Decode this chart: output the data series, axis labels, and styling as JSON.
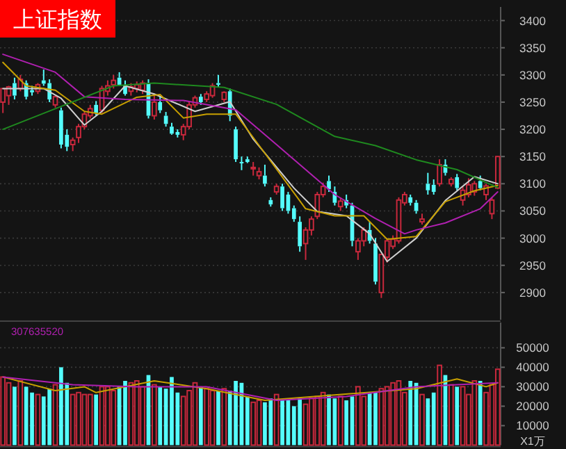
{
  "chart_data": [
    {
      "type": "candlestick",
      "title": "上证指数",
      "grid": "y",
      "ylim": [
        2850,
        3425
      ],
      "yticks": [
        2900,
        2950,
        3000,
        3050,
        3100,
        3150,
        3200,
        3250,
        3300,
        3350,
        3400
      ],
      "categories": [
        null,
        null,
        null,
        null,
        null,
        null,
        null,
        null,
        null,
        null,
        null,
        null,
        null,
        null,
        null,
        null,
        null,
        null,
        null,
        null,
        null,
        null,
        null,
        null,
        null,
        null,
        null,
        null,
        null,
        null,
        null,
        null,
        null,
        null,
        null,
        null,
        null,
        null,
        null,
        null,
        null,
        null,
        null,
        null,
        null,
        null,
        null,
        null,
        null,
        null,
        null,
        null,
        null,
        null,
        null,
        null,
        null,
        null,
        null,
        null,
        null,
        null,
        null,
        null,
        null,
        null,
        null,
        null,
        null,
        null,
        null,
        null,
        null,
        null,
        null,
        null,
        null,
        null,
        null,
        null,
        null,
        null,
        null,
        null,
        null,
        null
      ],
      "ohlc": [
        [
          3250,
          3275,
          3230,
          3275
        ],
        [
          3262,
          3280,
          3245,
          3278
        ],
        [
          3285,
          3295,
          3255,
          3262
        ],
        [
          3275,
          3300,
          3270,
          3292
        ],
        [
          3285,
          3290,
          3255,
          3260
        ],
        [
          3272,
          3280,
          3262,
          3268
        ],
        [
          3270,
          3285,
          3265,
          3282
        ],
        [
          3290,
          3310,
          3280,
          3284
        ],
        [
          3285,
          3292,
          3250,
          3255
        ],
        [
          3245,
          3262,
          3240,
          3260
        ],
        [
          3235,
          3240,
          3165,
          3172
        ],
        [
          3190,
          3200,
          3160,
          3168
        ],
        [
          3172,
          3185,
          3160,
          3180
        ],
        [
          3185,
          3210,
          3175,
          3205
        ],
        [
          3205,
          3232,
          3200,
          3228
        ],
        [
          3225,
          3245,
          3220,
          3238
        ],
        [
          3245,
          3252,
          3225,
          3230
        ],
        [
          3235,
          3280,
          3230,
          3275
        ],
        [
          3270,
          3290,
          3262,
          3280
        ],
        [
          3282,
          3300,
          3275,
          3290
        ],
        [
          3295,
          3305,
          3280,
          3282
        ],
        [
          3282,
          3290,
          3262,
          3265
        ],
        [
          3270,
          3285,
          3262,
          3278
        ],
        [
          3275,
          3288,
          3268,
          3282
        ],
        [
          3272,
          3290,
          3265,
          3285
        ],
        [
          3285,
          3292,
          3220,
          3225
        ],
        [
          3225,
          3262,
          3218,
          3250
        ],
        [
          3250,
          3260,
          3230,
          3235
        ],
        [
          3225,
          3232,
          3205,
          3210
        ],
        [
          3205,
          3212,
          3190,
          3192
        ],
        [
          3195,
          3200,
          3185,
          3190
        ],
        [
          3190,
          3210,
          3180,
          3205
        ],
        [
          3205,
          3250,
          3200,
          3245
        ],
        [
          3245,
          3262,
          3240,
          3258
        ],
        [
          3260,
          3265,
          3245,
          3250
        ],
        [
          3255,
          3270,
          3250,
          3265
        ],
        [
          3262,
          3285,
          3258,
          3280
        ],
        [
          3285,
          3300,
          3278,
          3282
        ],
        [
          3255,
          3270,
          3250,
          3268
        ],
        [
          3270,
          3275,
          3215,
          3225
        ],
        [
          3200,
          3205,
          3140,
          3145
        ],
        [
          3140,
          3150,
          3125,
          3138
        ],
        [
          3145,
          3150,
          3138,
          3140
        ],
        [
          3128,
          3140,
          3115,
          3130
        ],
        [
          3115,
          3130,
          3108,
          3122
        ],
        [
          3115,
          3135,
          3095,
          3100
        ],
        [
          3070,
          3075,
          3058,
          3062
        ],
        [
          3085,
          3100,
          3080,
          3095
        ],
        [
          3095,
          3100,
          3050,
          3055
        ],
        [
          3080,
          3085,
          3045,
          3050
        ],
        [
          3055,
          3060,
          3030,
          3035
        ],
        [
          3030,
          3040,
          2975,
          2985
        ],
        [
          2990,
          3020,
          2960,
          3015
        ],
        [
          3015,
          3040,
          3005,
          3035
        ],
        [
          3040,
          3085,
          3035,
          3080
        ],
        [
          3080,
          3102,
          3075,
          3095
        ],
        [
          3105,
          3115,
          3085,
          3090
        ],
        [
          3085,
          3095,
          3060,
          3065
        ],
        [
          3058,
          3075,
          3050,
          3068
        ],
        [
          3070,
          3080,
          3055,
          3060
        ],
        [
          3060,
          3065,
          2985,
          2995
        ],
        [
          2975,
          3000,
          2960,
          2995
        ],
        [
          2995,
          3020,
          2985,
          3015
        ],
        [
          3015,
          3030,
          2990,
          2995
        ],
        [
          2990,
          3000,
          2915,
          2920
        ],
        [
          2900,
          2970,
          2890,
          2970
        ],
        [
          2965,
          3000,
          2955,
          2995
        ],
        [
          2985,
          3005,
          2980,
          2998
        ],
        [
          2995,
          3075,
          2990,
          3070
        ],
        [
          3065,
          3085,
          3060,
          3080
        ],
        [
          3075,
          3080,
          3060,
          3065
        ],
        [
          3065,
          3070,
          3045,
          3050
        ],
        [
          3030,
          3045,
          3025,
          3035
        ],
        [
          3100,
          3120,
          3080,
          3088
        ],
        [
          3098,
          3108,
          3080,
          3085
        ],
        [
          3100,
          3145,
          3095,
          3135
        ],
        [
          3135,
          3145,
          3115,
          3120
        ],
        [
          3100,
          3112,
          3095,
          3108
        ],
        [
          3112,
          3118,
          3088,
          3092
        ],
        [
          3070,
          3095,
          3060,
          3088
        ],
        [
          3080,
          3110,
          3075,
          3098
        ],
        [
          3085,
          3105,
          3078,
          3100
        ],
        [
          3105,
          3115,
          3088,
          3092
        ],
        [
          3080,
          3100,
          3070,
          3096
        ],
        [
          3045,
          3075,
          3035,
          3070
        ],
        [
          3092,
          3150,
          3090,
          3150
        ]
      ],
      "series": [
        {
          "type": "line",
          "color": "#d0d0d0",
          "values": [
            3275,
            null,
            null,
            null,
            null,
            null,
            null,
            3275,
            null,
            null,
            3257,
            null,
            null,
            null,
            3208,
            null,
            null,
            3233,
            null,
            null,
            null,
            3280,
            null,
            null,
            null,
            null,
            3265,
            null,
            null,
            null,
            null,
            null,
            null,
            3233,
            null,
            null,
            null,
            null,
            null,
            3251,
            null,
            null,
            null,
            3182,
            null,
            null,
            null,
            null,
            null,
            null,
            3092,
            null,
            null,
            null,
            3049,
            null,
            null,
            null,
            null,
            3041,
            null,
            null,
            null,
            3008,
            null,
            null,
            2957,
            null,
            null,
            null,
            null,
            3000,
            null,
            null,
            null,
            null,
            3069,
            null,
            null,
            null,
            null,
            3113,
            null,
            null,
            null,
            3100
          ]
        },
        {
          "type": "line",
          "color": "#c8a000",
          "values": [
            3323,
            null,
            null,
            null,
            3280,
            null,
            null,
            null,
            null,
            3272,
            null,
            null,
            null,
            null,
            3233,
            null,
            null,
            3228,
            null,
            null,
            null,
            null,
            null,
            3259,
            null,
            null,
            null,
            3264,
            null,
            null,
            null,
            3221,
            null,
            null,
            null,
            3228,
            null,
            null,
            null,
            null,
            3228,
            null,
            null,
            null,
            null,
            3156,
            null,
            null,
            null,
            null,
            null,
            null,
            3054,
            null,
            null,
            null,
            null,
            3041,
            null,
            null,
            null,
            null,
            3041,
            null,
            null,
            null,
            2998,
            null,
            null,
            null,
            null,
            3003,
            null,
            null,
            null,
            null,
            3067,
            null,
            null,
            null,
            null,
            3087,
            null,
            null,
            null,
            3097
          ]
        },
        {
          "type": "line",
          "color": "#b020b0",
          "values": [
            3338,
            null,
            null,
            null,
            null,
            null,
            null,
            null,
            null,
            3305,
            null,
            null,
            null,
            null,
            3260,
            null,
            null,
            null,
            null,
            null,
            null,
            3255,
            null,
            null,
            null,
            null,
            null,
            null,
            null,
            null,
            null,
            3253,
            null,
            null,
            null,
            null,
            null,
            null,
            null,
            null,
            3236,
            null,
            null,
            null,
            null,
            null,
            null,
            3172,
            null,
            null,
            null,
            null,
            null,
            null,
            null,
            null,
            null,
            3080,
            null,
            null,
            null,
            null,
            null,
            null,
            3036,
            null,
            null,
            null,
            null,
            3008,
            null,
            3015,
            null,
            null,
            null,
            null,
            3028,
            null,
            null,
            null,
            null,
            null,
            3054,
            null,
            null,
            3085
          ]
        },
        {
          "type": "line",
          "color": "#1f8a1f",
          "values": [
            3200,
            null,
            null,
            null,
            null,
            null,
            null,
            null,
            null,
            3238,
            null,
            null,
            null,
            null,
            null,
            null,
            null,
            null,
            null,
            3280,
            null,
            null,
            null,
            null,
            null,
            null,
            3285,
            null,
            null,
            null,
            null,
            null,
            null,
            null,
            null,
            null,
            null,
            null,
            3277,
            null,
            null,
            null,
            null,
            null,
            null,
            null,
            null,
            3246,
            null,
            null,
            null,
            null,
            null,
            null,
            null,
            null,
            null,
            3187,
            null,
            null,
            null,
            null,
            null,
            null,
            3170,
            null,
            null,
            null,
            null,
            null,
            null,
            3144,
            null,
            null,
            null,
            null,
            null,
            null,
            3126,
            null,
            null,
            null,
            null,
            null,
            null,
            3093
          ]
        }
      ]
    },
    {
      "type": "bar",
      "grid": "y",
      "ylim": [
        0,
        63000
      ],
      "yticks": [
        10000,
        20000,
        30000,
        40000,
        50000
      ],
      "ylabel": "X1万",
      "annotations": [
        "307635520"
      ],
      "categories": [
        null,
        null,
        null,
        null,
        null,
        null,
        null,
        null,
        null,
        null,
        null,
        null,
        null,
        null,
        null,
        null,
        null,
        null,
        null,
        null,
        null,
        null,
        null,
        null,
        null,
        null,
        null,
        null,
        null,
        null,
        null,
        null,
        null,
        null,
        null,
        null,
        null,
        null,
        null,
        null,
        null,
        null,
        null,
        null,
        null,
        null,
        null,
        null,
        null,
        null,
        null,
        null,
        null,
        null,
        null,
        null,
        null,
        null,
        null,
        null,
        null,
        null,
        null,
        null,
        null,
        null,
        null,
        null,
        null,
        null,
        null,
        null,
        null,
        null,
        null,
        null,
        null,
        null,
        null,
        null,
        null,
        null,
        null,
        null,
        null,
        null
      ],
      "series": [
        {
          "type": "bar",
          "values": [
            35000,
            32000,
            30000,
            33000,
            30000,
            27000,
            26000,
            25000,
            29000,
            31000,
            40000,
            32000,
            26000,
            27000,
            26000,
            26000,
            26000,
            30000,
            30000,
            28000,
            30000,
            33000,
            32000,
            33000,
            30000,
            36000,
            31000,
            30000,
            29000,
            35000,
            27000,
            25000,
            28000,
            32000,
            30000,
            29000,
            28000,
            28000,
            29000,
            28000,
            33000,
            32000,
            25000,
            22000,
            23000,
            22000,
            24000,
            26000,
            23000,
            23000,
            20000,
            24000,
            21000,
            24000,
            25000,
            27000,
            26000,
            24000,
            25000,
            23000,
            25000,
            30000,
            25000,
            27000,
            27000,
            29000,
            30000,
            32000,
            33000,
            27000,
            33000,
            32000,
            26000,
            24000,
            27000,
            41000,
            36000,
            31000,
            30000,
            30000,
            26000,
            33000,
            33000,
            27000,
            31000,
            39000
          ],
          "colors": [
            "#c8283c",
            "#c8283c",
            "#54fcfc",
            "#c8283c",
            "#54fcfc",
            "#54fcfc",
            "#c8283c",
            "#54fcfc",
            "#54fcfc",
            "#c8283c",
            "#54fcfc",
            "#54fcfc",
            "#c8283c",
            "#c8283c",
            "#c8283c",
            "#c8283c",
            "#54fcfc",
            "#c8283c",
            "#c8283c",
            "#c8283c",
            "#54fcfc",
            "#54fcfc",
            "#c8283c",
            "#c8283c",
            "#c8283c",
            "#54fcfc",
            "#c8283c",
            "#54fcfc",
            "#54fcfc",
            "#54fcfc",
            "#54fcfc",
            "#c8283c",
            "#c8283c",
            "#c8283c",
            "#54fcfc",
            "#c8283c",
            "#c8283c",
            "#54fcfc",
            "#c8283c",
            "#54fcfc",
            "#54fcfc",
            "#54fcfc",
            "#54fcfc",
            "#c8283c",
            "#c8283c",
            "#54fcfc",
            "#54fcfc",
            "#c8283c",
            "#54fcfc",
            "#54fcfc",
            "#54fcfc",
            "#54fcfc",
            "#c8283c",
            "#c8283c",
            "#c8283c",
            "#c8283c",
            "#54fcfc",
            "#54fcfc",
            "#c8283c",
            "#54fcfc",
            "#54fcfc",
            "#c8283c",
            "#c8283c",
            "#54fcfc",
            "#54fcfc",
            "#c8283c",
            "#c8283c",
            "#c8283c",
            "#c8283c",
            "#c8283c",
            "#54fcfc",
            "#54fcfc",
            "#c8283c",
            "#54fcfc",
            "#54fcfc",
            "#c8283c",
            "#54fcfc",
            "#c8283c",
            "#54fcfc",
            "#c8283c",
            "#c8283c",
            "#c8283c",
            "#54fcfc",
            "#c8283c",
            "#c8283c",
            "#c8283c"
          ]
        },
        {
          "type": "line",
          "color": "#c8a000",
          "values": [
            35000,
            null,
            null,
            null,
            null,
            null,
            null,
            null,
            null,
            28000,
            null,
            null,
            null,
            null,
            30000,
            null,
            27000,
            null,
            null,
            null,
            null,
            null,
            null,
            null,
            null,
            null,
            33000,
            null,
            null,
            null,
            null,
            null,
            null,
            null,
            null,
            29000,
            null,
            null,
            null,
            null,
            null,
            null,
            null,
            null,
            null,
            23000,
            null,
            null,
            null,
            null,
            null,
            null,
            null,
            null,
            null,
            null,
            null,
            null,
            null,
            null,
            null,
            null,
            null,
            null,
            null,
            null,
            null,
            null,
            null,
            null,
            null,
            29000,
            null,
            null,
            null,
            null,
            null,
            null,
            34000,
            null,
            null,
            null,
            null,
            30000,
            null,
            32000
          ]
        },
        {
          "type": "line",
          "color": "#b020b0",
          "values": [
            35000,
            null,
            null,
            null,
            null,
            null,
            null,
            null,
            null,
            null,
            null,
            null,
            31000,
            null,
            null,
            null,
            null,
            null,
            null,
            null,
            null,
            null,
            null,
            30000,
            null,
            null,
            null,
            null,
            null,
            null,
            null,
            null,
            null,
            null,
            null,
            30000,
            null,
            null,
            null,
            null,
            null,
            null,
            null,
            null,
            null,
            null,
            null,
            23000,
            null,
            null,
            null,
            null,
            null,
            null,
            null,
            null,
            null,
            null,
            null,
            25000,
            null,
            null,
            null,
            null,
            null,
            null,
            null,
            null,
            null,
            null,
            null,
            30000,
            null,
            null,
            null,
            null,
            null,
            null,
            31000,
            null,
            null,
            null,
            null,
            null,
            null,
            32000
          ]
        }
      ]
    }
  ]
}
